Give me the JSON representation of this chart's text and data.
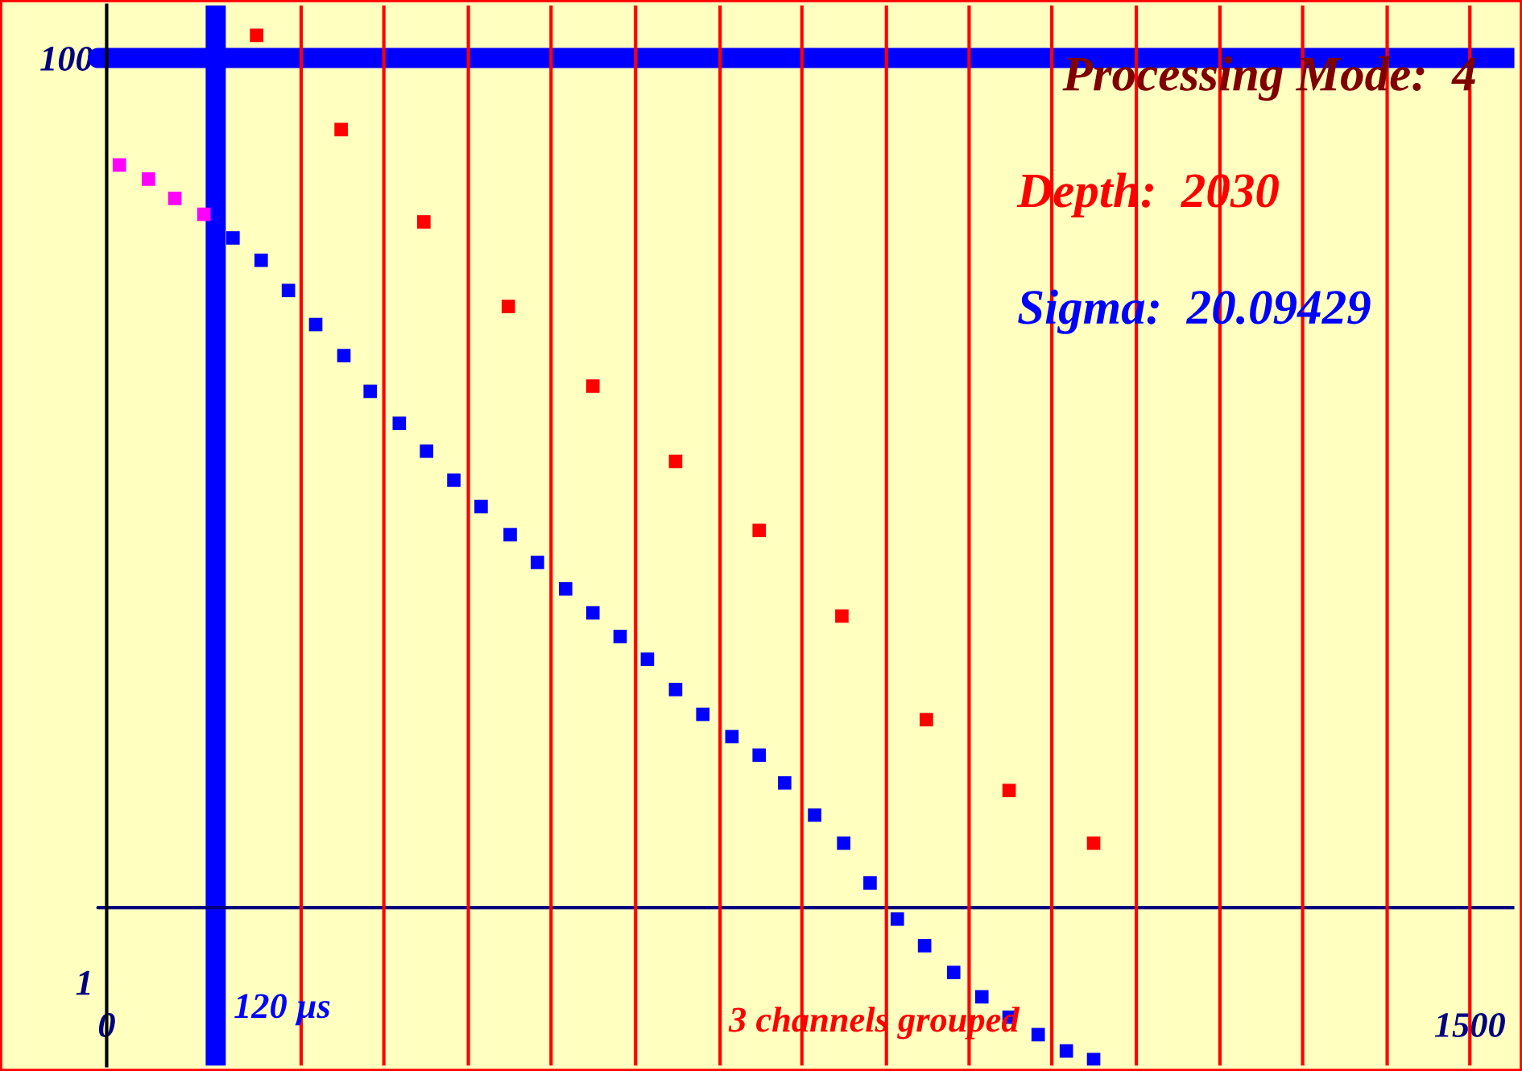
{
  "chart_data": {
    "type": "scatter",
    "log": "y",
    "xlim": [
      -109,
      1549
    ],
    "ylim": [
      0.66,
      130
    ],
    "xticks": [
      0,
      1500
    ],
    "yticks": [
      1,
      100
    ],
    "grid": false,
    "legend": false,
    "marker": "square",
    "series": [
      {
        "color": "#ff00ff",
        "x": [
          14,
          46,
          75,
          107
        ],
        "values": [
          58.7,
          54.7,
          49.7,
          45.9
        ]
      },
      {
        "color": "#0000ff",
        "x": [
          139,
          170,
          200,
          230,
          261,
          290,
          322,
          352,
          382,
          412,
          444,
          474,
          505,
          535,
          565,
          595,
          626,
          656,
          688,
          718,
          746,
          779,
          811,
          840,
          870,
          900,
          932,
          963,
          993,
          1025,
          1056,
          1086
        ],
        "values": [
          40.8,
          36.5,
          31.4,
          26.5,
          22.7,
          19.0,
          16.2,
          14.1,
          12.2,
          10.7,
          9.3,
          8.1,
          7.1,
          6.3,
          5.6,
          5.0,
          4.3,
          3.8,
          3.4,
          3.1,
          2.7,
          2.3,
          2.0,
          1.64,
          1.37,
          1.2,
          1.05,
          0.93,
          0.84,
          0.77,
          0.71,
          0.68
        ]
      },
      {
        "color": "#ff0000",
        "x": [
          165,
          258,
          349,
          442,
          535,
          626,
          718,
          809,
          902,
          993,
          1086
        ],
        "values": [
          112,
          70,
          44.2,
          29,
          19.5,
          13.4,
          9.5,
          6.2,
          3.7,
          2.6,
          2.0
        ]
      }
    ],
    "ref_lines": [
      {
        "axis": "x",
        "value": 120,
        "label": "120 µs",
        "color": "#0000ff"
      },
      {
        "axis": "y",
        "value": 100,
        "color": "#0000ff"
      },
      {
        "axis": "y",
        "value": 1.45,
        "color": "#000080"
      },
      {
        "axis": "x",
        "value": 214,
        "color": "#ff0000"
      },
      {
        "axis": "x",
        "value": 305,
        "color": "#ff0000"
      },
      {
        "axis": "x",
        "value": 398,
        "color": "#ff0000"
      },
      {
        "axis": "x",
        "value": 489,
        "color": "#ff0000"
      },
      {
        "axis": "x",
        "value": 582,
        "color": "#ff0000"
      },
      {
        "axis": "x",
        "value": 675,
        "color": "#ff0000"
      },
      {
        "axis": "x",
        "value": 765,
        "color": "#ff0000"
      },
      {
        "axis": "x",
        "value": 858,
        "color": "#ff0000"
      },
      {
        "axis": "x",
        "value": 949,
        "color": "#ff0000"
      },
      {
        "axis": "x",
        "value": 1040,
        "color": "#ff0000"
      },
      {
        "axis": "x",
        "value": 1133,
        "color": "#ff0000"
      },
      {
        "axis": "x",
        "value": 1225,
        "color": "#ff0000"
      },
      {
        "axis": "x",
        "value": 1316,
        "color": "#ff0000"
      },
      {
        "axis": "x",
        "value": 1409,
        "color": "#ff0000"
      },
      {
        "axis": "x",
        "value": 1500,
        "color": "#ff0000"
      }
    ],
    "annotations": [
      "Processing Mode:  4",
      "Depth:  2030",
      "Sigma:  20.09429",
      "3 channels grouped"
    ]
  }
}
